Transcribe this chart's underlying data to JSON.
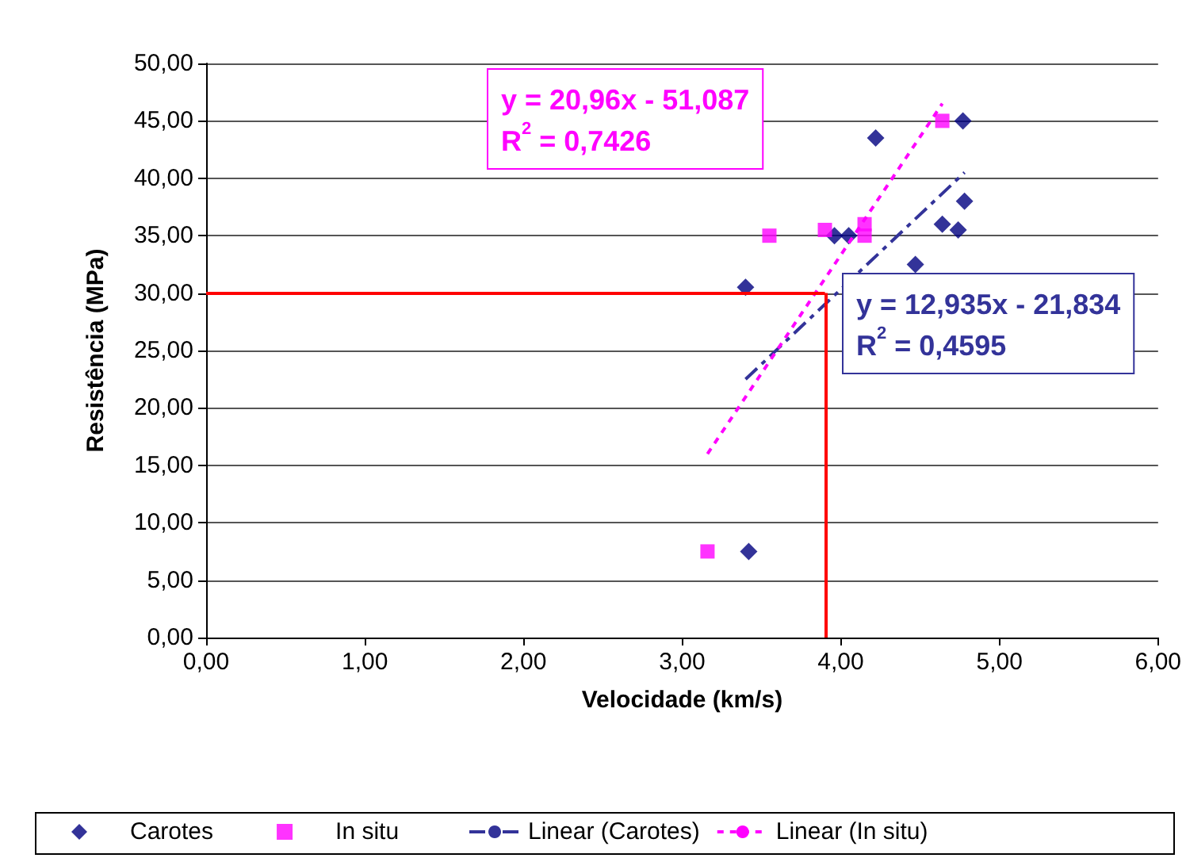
{
  "chart_data": {
    "type": "scatter",
    "xlabel": "Velocidade (km/s)",
    "ylabel": "Resistência (MPa)",
    "xlim": [
      0,
      6
    ],
    "xticks": [
      {
        "value": 0,
        "label": "0,00"
      },
      {
        "value": 1,
        "label": "1,00"
      },
      {
        "value": 2,
        "label": "2,00"
      },
      {
        "value": 3,
        "label": "3,00"
      },
      {
        "value": 4,
        "label": "4,00"
      },
      {
        "value": 5,
        "label": "5,00"
      },
      {
        "value": 6,
        "label": "6,00"
      }
    ],
    "ylim": [
      0,
      50
    ],
    "yticks": [
      {
        "value": 0,
        "label": "0,00"
      },
      {
        "value": 5,
        "label": "5,00"
      },
      {
        "value": 10,
        "label": "10,00"
      },
      {
        "value": 15,
        "label": "15,00"
      },
      {
        "value": 20,
        "label": "20,00"
      },
      {
        "value": 25,
        "label": "25,00"
      },
      {
        "value": 30,
        "label": "30,00"
      },
      {
        "value": 35,
        "label": "35,00"
      },
      {
        "value": 40,
        "label": "40,00"
      },
      {
        "value": 45,
        "label": "45,00"
      },
      {
        "value": 50,
        "label": "50,00"
      }
    ],
    "grid": "y",
    "legend": "bottom",
    "series": [
      {
        "name": "Carotes",
        "marker": "diamond",
        "color": "#000080",
        "x": [
          3.4,
          3.42,
          4.22,
          4.77,
          4.78,
          4.64,
          4.74,
          3.96,
          4.05,
          4.47
        ],
        "values": [
          30.5,
          7.5,
          43.5,
          45.0,
          38.0,
          36.0,
          35.5,
          35.0,
          35.0,
          32.5
        ]
      },
      {
        "name": "In situ",
        "marker": "square",
        "color": "#ff00ff",
        "x": [
          4.64,
          3.55,
          3.9,
          4.15,
          4.15,
          3.16
        ],
        "values": [
          45.0,
          35.0,
          35.5,
          36.0,
          35.0,
          7.5
        ]
      },
      {
        "name": "Linear (Carotes)",
        "type": "line",
        "line_style": "dashed",
        "color": "#333399",
        "x": [
          3.4,
          4.78
        ],
        "values": [
          22.5,
          40.5
        ]
      },
      {
        "name": "Linear (In situ)",
        "type": "line",
        "line_style": "dotted",
        "color": "#ff00ff",
        "x": [
          3.16,
          4.64
        ],
        "values": [
          16.0,
          46.5
        ]
      }
    ],
    "ref_lines": [
      {
        "axis": "y",
        "value": 30,
        "label": null,
        "color": "#ff0000"
      },
      {
        "axis": "x",
        "value": 3.9,
        "label": null,
        "color": "#ff0000"
      }
    ],
    "annotations": [
      "y = 20,96x - 51,087",
      "R$^{2}$ = 0,7426",
      "y = 12,935x - 21,834",
      "R$^{2}$ = 0,4595"
    ]
  }
}
